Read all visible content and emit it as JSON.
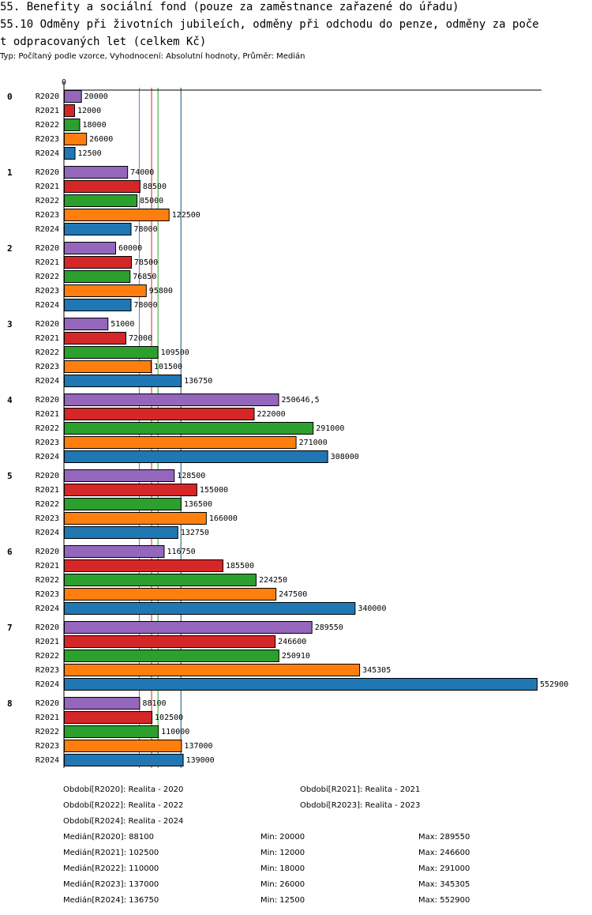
{
  "header": {
    "title_line1": "55. Benefity a sociální fond (pouze za zaměstnance zařazené do úřadu)",
    "title_line2": "55.10 Odměny při životních jubileích, odměny při odchodu do penze, odměny za poče",
    "title_line3": "t odpracovaných let (celkem Kč)",
    "subtitle": "Typ: Počítaný podle vzorce, Vyhodnocení: Absolutní hodnoty, Průměr: Medián"
  },
  "colors": {
    "R2020": "#9467bd",
    "R2021": "#d62728",
    "R2022": "#2ca02c",
    "R2023": "#ff7f0e",
    "R2024": "#1f77b4"
  },
  "chart_data": {
    "type": "bar",
    "orientation": "horizontal",
    "axis_zero_label": "0",
    "categories": [
      "0",
      "1",
      "2",
      "3",
      "4",
      "5",
      "6",
      "7",
      "8"
    ],
    "series_names": [
      "R2020",
      "R2021",
      "R2022",
      "R2023",
      "R2024"
    ],
    "series": [
      {
        "name": "R2020",
        "values": [
          20000,
          74000,
          60000,
          51000,
          250646.5,
          128500,
          116750,
          289550,
          88100
        ],
        "labels": [
          "20000",
          "74000",
          "60000",
          "51000",
          "250646,5",
          "128500",
          "116750",
          "289550",
          "88100"
        ]
      },
      {
        "name": "R2021",
        "values": [
          12000,
          88500,
          78500,
          72000,
          222000,
          155000,
          185500,
          246600,
          102500
        ],
        "labels": [
          "12000",
          "88500",
          "78500",
          "72000",
          "222000",
          "155000",
          "185500",
          "246600",
          "102500"
        ]
      },
      {
        "name": "R2022",
        "values": [
          18000,
          85000,
          76850,
          109500,
          291000,
          136500,
          224250,
          250910,
          110000
        ],
        "labels": [
          "18000",
          "85000",
          "76850",
          "109500",
          "291000",
          "136500",
          "224250",
          "250910",
          "110000"
        ]
      },
      {
        "name": "R2023",
        "values": [
          26000,
          122500,
          95800,
          101500,
          271000,
          166000,
          247500,
          345305,
          137000
        ],
        "labels": [
          "26000",
          "122500",
          "95800",
          "101500",
          "271000",
          "166000",
          "247500",
          "345305",
          "137000"
        ]
      },
      {
        "name": "R2024",
        "values": [
          12500,
          78000,
          78000,
          136750,
          308000,
          132750,
          340000,
          552900,
          139000
        ],
        "labels": [
          "12500",
          "78000",
          "78000",
          "136750",
          "308000",
          "132750",
          "340000",
          "552900",
          "139000"
        ]
      }
    ],
    "medians": {
      "R2020": 88100,
      "R2021": 102500,
      "R2022": 110000,
      "R2023": 137000,
      "R2024": 136750
    },
    "xlim": [
      0,
      552900
    ],
    "grid": false
  },
  "legend": {
    "periods": [
      "Období[R2020]: Realita - 2020",
      "Období[R2021]: Realita - 2021",
      "Období[R2022]: Realita - 2022",
      "Období[R2023]: Realita - 2023",
      "Období[R2024]: Realita - 2024"
    ],
    "stats": [
      {
        "median": "Medián[R2020]: 88100",
        "min": "Min: 20000",
        "max": "Max: 289550"
      },
      {
        "median": "Medián[R2021]: 102500",
        "min": "Min: 12000",
        "max": "Max: 246600"
      },
      {
        "median": "Medián[R2022]: 110000",
        "min": "Min: 18000",
        "max": "Max: 291000"
      },
      {
        "median": "Medián[R2023]: 137000",
        "min": "Min: 26000",
        "max": "Max: 345305"
      },
      {
        "median": "Medián[R2024]: 136750",
        "min": "Min: 12500",
        "max": "Max: 552900"
      }
    ]
  }
}
